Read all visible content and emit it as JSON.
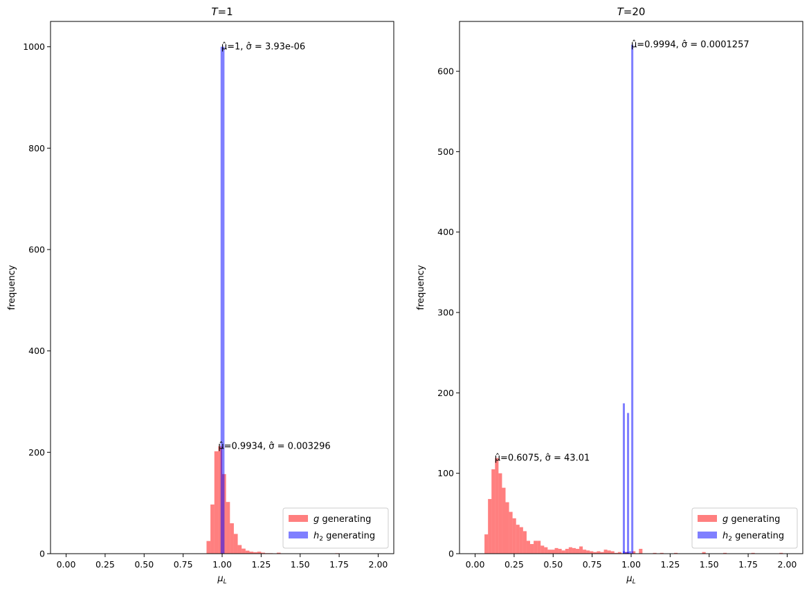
{
  "chart_data": [
    {
      "type": "bar",
      "title": "T=1",
      "xlabel": "μL",
      "ylabel": "frequency",
      "xlim": [
        -0.1,
        2.1
      ],
      "ylim": [
        0,
        1050
      ],
      "xticks": [
        0.0,
        0.25,
        0.5,
        0.75,
        1.0,
        1.25,
        1.5,
        1.75,
        2.0
      ],
      "xtick_labels": [
        "0.00",
        "0.25",
        "0.50",
        "0.75",
        "1.00",
        "1.25",
        "1.50",
        "1.75",
        "2.00"
      ],
      "yticks": [
        0,
        200,
        400,
        600,
        800,
        1000
      ],
      "ytick_labels": [
        "0",
        "200",
        "400",
        "600",
        "800",
        "1000"
      ],
      "legend_position": "lower-right",
      "grid": false,
      "series": [
        {
          "name": "g generating",
          "color": "#ff0000",
          "alpha": 0.5,
          "bin_width": 0.025,
          "bins": [
            [
              0.9,
              25
            ],
            [
              0.925,
              97
            ],
            [
              0.95,
              202
            ],
            [
              0.975,
              212
            ],
            [
              1.0,
              157
            ],
            [
              1.025,
              102
            ],
            [
              1.05,
              60
            ],
            [
              1.075,
              39
            ],
            [
              1.1,
              17
            ],
            [
              1.125,
              10
            ],
            [
              1.15,
              6
            ],
            [
              1.175,
              4
            ],
            [
              1.2,
              3
            ],
            [
              1.225,
              4
            ],
            [
              1.25,
              2
            ],
            [
              1.275,
              1
            ],
            [
              1.3,
              1
            ],
            [
              1.35,
              2
            ],
            [
              1.725,
              1
            ]
          ]
        },
        {
          "name": "h2 generating",
          "color": "#0000ff",
          "alpha": 0.5,
          "bin_width": 0.025,
          "bins": [
            [
              0.99,
              1000
            ]
          ]
        }
      ],
      "annotations": [
        {
          "text": "μ̂=1, σ̂ = 3.93e-06",
          "x": 0.995,
          "y": 1000
        },
        {
          "text": "μ̂=0.9934, σ̂ = 0.003296",
          "x": 0.975,
          "y": 212
        }
      ]
    },
    {
      "type": "bar",
      "title": "T=20",
      "xlabel": "μL",
      "ylabel": "frequency",
      "xlim": [
        -0.1,
        2.1
      ],
      "ylim": [
        0,
        662
      ],
      "xticks": [
        0.0,
        0.25,
        0.5,
        0.75,
        1.0,
        1.25,
        1.5,
        1.75,
        2.0
      ],
      "xtick_labels": [
        "0.00",
        "0.25",
        "0.50",
        "0.75",
        "1.00",
        "1.25",
        "1.50",
        "1.75",
        "2.00"
      ],
      "yticks": [
        0,
        100,
        200,
        300,
        400,
        500,
        600
      ],
      "ytick_labels": [
        "0",
        "100",
        "200",
        "300",
        "400",
        "500",
        "600"
      ],
      "legend_position": "lower-right",
      "grid": false,
      "series": [
        {
          "name": "g generating",
          "color": "#ff0000",
          "alpha": 0.5,
          "bin_width": 0.0225,
          "bins": [
            [
              0.06,
              24
            ],
            [
              0.0825,
              68
            ],
            [
              0.105,
              105
            ],
            [
              0.1275,
              119
            ],
            [
              0.15,
              100
            ],
            [
              0.1725,
              82
            ],
            [
              0.195,
              64
            ],
            [
              0.2175,
              52
            ],
            [
              0.24,
              44
            ],
            [
              0.2625,
              36
            ],
            [
              0.285,
              33
            ],
            [
              0.3075,
              28
            ],
            [
              0.33,
              16
            ],
            [
              0.3525,
              12
            ],
            [
              0.375,
              16
            ],
            [
              0.3975,
              16
            ],
            [
              0.42,
              10
            ],
            [
              0.4425,
              8
            ],
            [
              0.465,
              5
            ],
            [
              0.4875,
              5
            ],
            [
              0.51,
              7
            ],
            [
              0.5325,
              6
            ],
            [
              0.555,
              4
            ],
            [
              0.5775,
              6
            ],
            [
              0.6,
              8
            ],
            [
              0.6225,
              7
            ],
            [
              0.645,
              6
            ],
            [
              0.6675,
              9
            ],
            [
              0.69,
              5
            ],
            [
              0.7125,
              4
            ],
            [
              0.735,
              3
            ],
            [
              0.7575,
              2
            ],
            [
              0.78,
              3
            ],
            [
              0.8025,
              2
            ],
            [
              0.825,
              5
            ],
            [
              0.8475,
              4
            ],
            [
              0.87,
              3
            ],
            [
              0.8925,
              1
            ],
            [
              0.915,
              2
            ],
            [
              0.96,
              2
            ],
            [
              1.005,
              3
            ],
            [
              1.05,
              6
            ],
            [
              1.14,
              1
            ],
            [
              1.185,
              1
            ],
            [
              1.275,
              1
            ],
            [
              1.455,
              2
            ],
            [
              1.59,
              1
            ],
            [
              1.77,
              1
            ],
            [
              1.95,
              1
            ]
          ]
        },
        {
          "name": "h2 generating",
          "color": "#0000ff",
          "alpha": 0.5,
          "bin_width": 0.0135,
          "bins": [
            [
              0.9465,
              3
            ],
            [
              0.96,
              2
            ],
            [
              0.9735,
              2
            ],
            [
              0.987,
              3
            ],
            [
              0.9465,
              187
            ],
            [
              0.9735,
              175
            ],
            [
              1.0005,
              633
            ]
          ]
        }
      ],
      "annotations": [
        {
          "text": "μ̂=0.9994, σ̂ = 0.0001257",
          "x": 1.0,
          "y": 633
        },
        {
          "text": "μ̂=0.6075, σ̂ = 43.01",
          "x": 0.125,
          "y": 119
        }
      ]
    }
  ],
  "legend_labels": {
    "g": {
      "pre": "",
      "sym": "g",
      "sub": "",
      "post": " generating"
    },
    "h2": {
      "pre": "",
      "sym": "h",
      "sub": "2",
      "post": " generating"
    }
  }
}
